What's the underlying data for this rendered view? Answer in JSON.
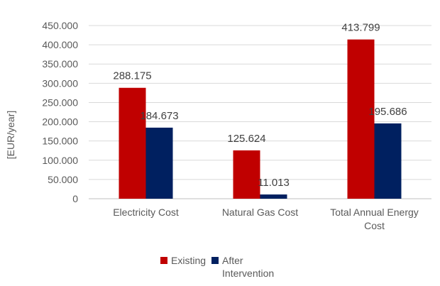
{
  "chart_data": {
    "type": "bar",
    "title": "",
    "ylabel": "[EUR/year]",
    "xlabel": "",
    "categories": [
      "Electricity Cost",
      "Natural Gas Cost",
      "Total Annual Energy Cost"
    ],
    "category_lines": [
      [
        "Electricity Cost"
      ],
      [
        "Natural Gas Cost"
      ],
      [
        "Total Annual Energy",
        "Cost"
      ]
    ],
    "series": [
      {
        "name": "Existing",
        "color": "#c00000",
        "values": [
          288.175,
          125.624,
          413.799
        ],
        "labels": [
          "288.175",
          "125.624",
          "413.799"
        ]
      },
      {
        "name": "After Intervention",
        "color": "#002060",
        "values": [
          184.673,
          11.013,
          195.686
        ],
        "labels": [
          "184.673",
          "11.013",
          "195.686"
        ]
      }
    ],
    "ylim": [
      0,
      450
    ],
    "yticks": [
      "0",
      "50.000",
      "100.000",
      "150.000",
      "200.000",
      "250.000",
      "300.000",
      "350.000",
      "400.000",
      "450.000"
    ],
    "grid": true,
    "legend_position": "bottom"
  }
}
